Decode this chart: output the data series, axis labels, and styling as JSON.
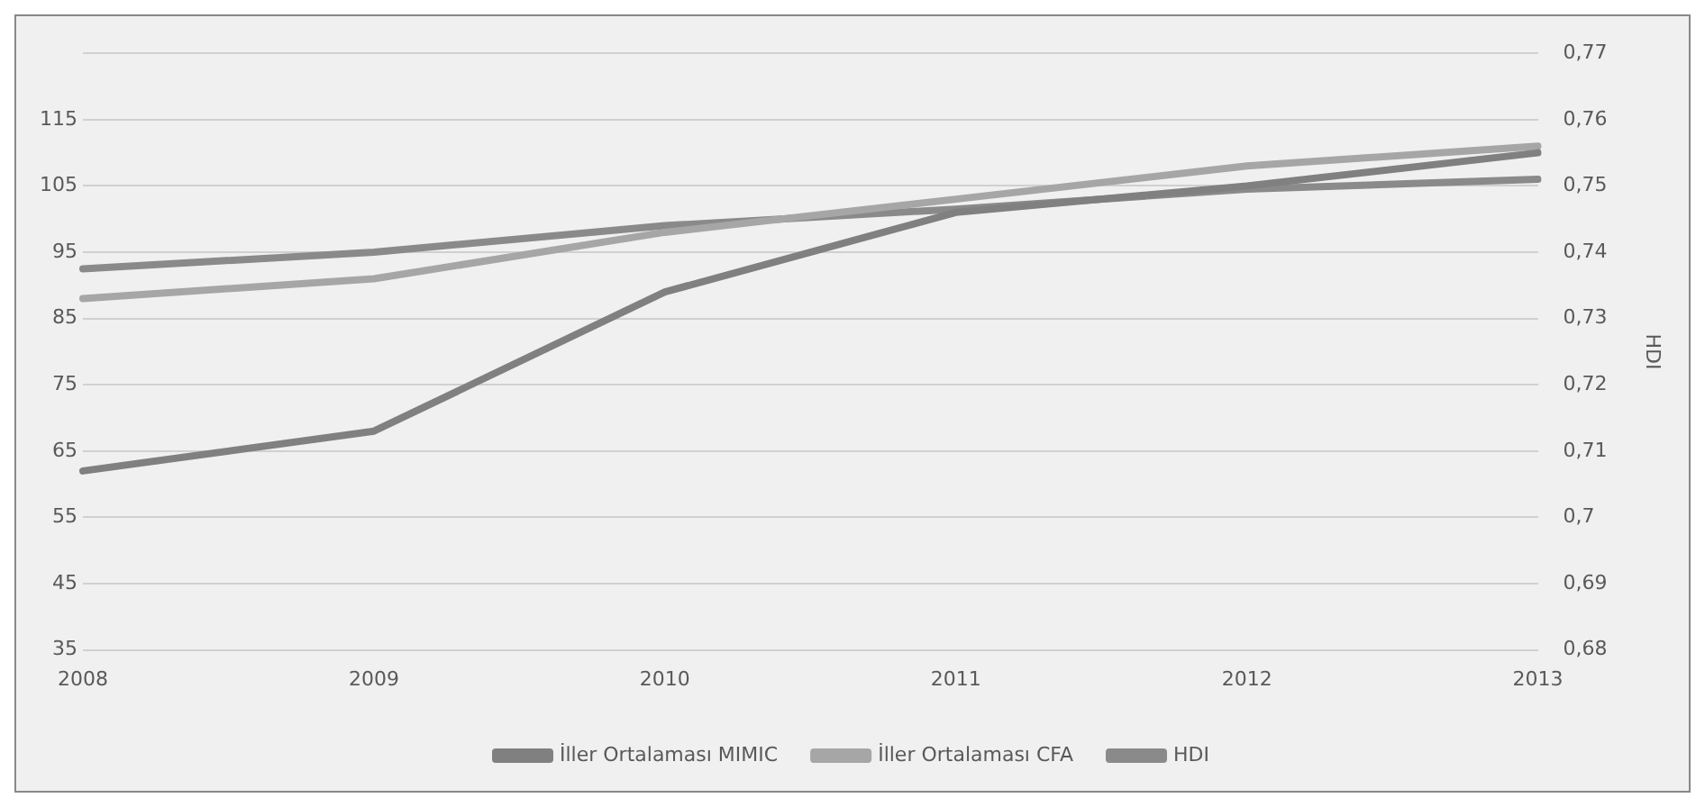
{
  "chart_data": {
    "type": "line",
    "categories": [
      "2008",
      "2009",
      "2010",
      "2011",
      "2012",
      "2013"
    ],
    "series": [
      {
        "name": "İller Ortalaması MIMIC",
        "color": "#808080",
        "values": [
          62,
          68,
          89,
          101,
          105,
          110
        ]
      },
      {
        "name": "İller Ortalaması CFA",
        "color": "#a6a6a6",
        "values": [
          88,
          91,
          98,
          103,
          108,
          111
        ]
      },
      {
        "name": "HDI",
        "color": "#8a8a8a",
        "axis": "y2",
        "values": [
          0.7375,
          0.74,
          0.744,
          0.7465,
          0.7495,
          0.751
        ]
      }
    ],
    "ylim": [
      35,
      125
    ],
    "yticks": [
      35,
      45,
      55,
      65,
      75,
      85,
      95,
      105,
      115
    ],
    "y2label": "HDI",
    "y2lim": [
      0.68,
      0.77
    ],
    "y2ticks": [
      {
        "value": 0.68,
        "label": "0,68"
      },
      {
        "value": 0.69,
        "label": "0,69"
      },
      {
        "value": 0.7,
        "label": "0,7"
      },
      {
        "value": 0.71,
        "label": "0,71"
      },
      {
        "value": 0.72,
        "label": "0,72"
      },
      {
        "value": 0.73,
        "label": "0,73"
      },
      {
        "value": 0.74,
        "label": "0,74"
      },
      {
        "value": 0.75,
        "label": "0,75"
      },
      {
        "value": 0.76,
        "label": "0,76"
      },
      {
        "value": 0.77,
        "label": "0,77"
      }
    ],
    "grid": "y2",
    "legend": "bottom",
    "marker": "none",
    "line_style": "solid"
  }
}
